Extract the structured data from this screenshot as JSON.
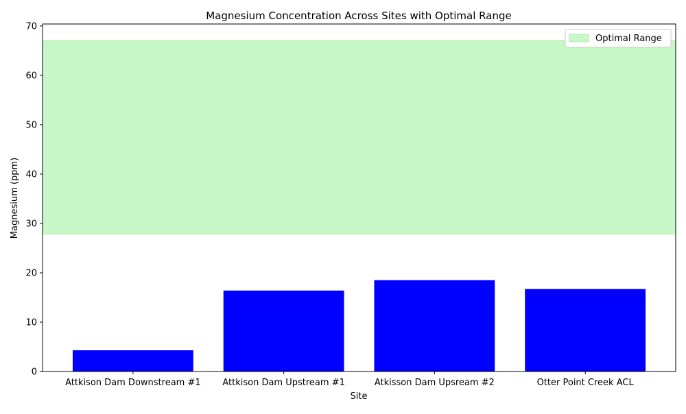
{
  "chart_data": {
    "type": "bar",
    "title": "Magnesium Concentration Across Sites with Optimal Range",
    "xlabel": "Site",
    "ylabel": "Magnesium (ppm)",
    "categories": [
      "Attkison Dam Downstream #1",
      "Attkison Dam Upstream #1",
      "Atkisson Dam Upsream #2",
      "Otter Point Creek ACL"
    ],
    "values": [
      4.3,
      16.4,
      18.5,
      16.7
    ],
    "ylim": [
      0,
      70.4
    ],
    "yticks": [
      0,
      10,
      20,
      30,
      40,
      50,
      60,
      70
    ],
    "optimal_range": {
      "label": "Optimal Range",
      "min": 27.8,
      "max": 67.1
    },
    "legend": {
      "position": "top-right",
      "entries": [
        "Optimal Range"
      ]
    },
    "grid": false,
    "colors": {
      "bar": "#0000ff",
      "band": "#c8f7c8",
      "band_edge": "#b6eeb6"
    }
  }
}
